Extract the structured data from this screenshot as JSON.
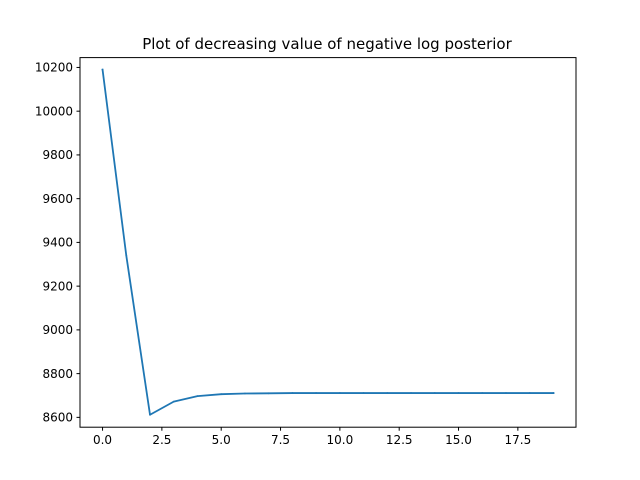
{
  "chart_data": {
    "type": "line",
    "title": "Plot of decreasing value of negative log posterior",
    "xlabel": "",
    "ylabel": "",
    "xlim": [
      -0.95,
      19.95
    ],
    "ylim": [
      8555,
      10245
    ],
    "xticks": [
      0.0,
      2.5,
      5.0,
      7.5,
      10.0,
      12.5,
      15.0,
      17.5
    ],
    "xtick_labels": [
      "0.0",
      "2.5",
      "5.0",
      "7.5",
      "10.0",
      "12.5",
      "15.0",
      "17.5"
    ],
    "yticks": [
      8600,
      8800,
      9000,
      9200,
      9400,
      9600,
      9800,
      10000,
      10200
    ],
    "ytick_labels": [
      "8600",
      "8800",
      "9000",
      "9200",
      "9400",
      "9600",
      "9800",
      "10000",
      "10200"
    ],
    "grid": false,
    "series": [
      {
        "color": "#1f77b4",
        "x": [
          0,
          1,
          2,
          3,
          4,
          5,
          6,
          7,
          8,
          9,
          10,
          11,
          12,
          13,
          14,
          15,
          16,
          17,
          18,
          19
        ],
        "y": [
          10190,
          9340,
          8612,
          8672,
          8697,
          8706,
          8709,
          8710,
          8711,
          8711,
          8711,
          8711,
          8711,
          8711,
          8711,
          8711,
          8711,
          8711,
          8711,
          8711
        ]
      }
    ]
  }
}
